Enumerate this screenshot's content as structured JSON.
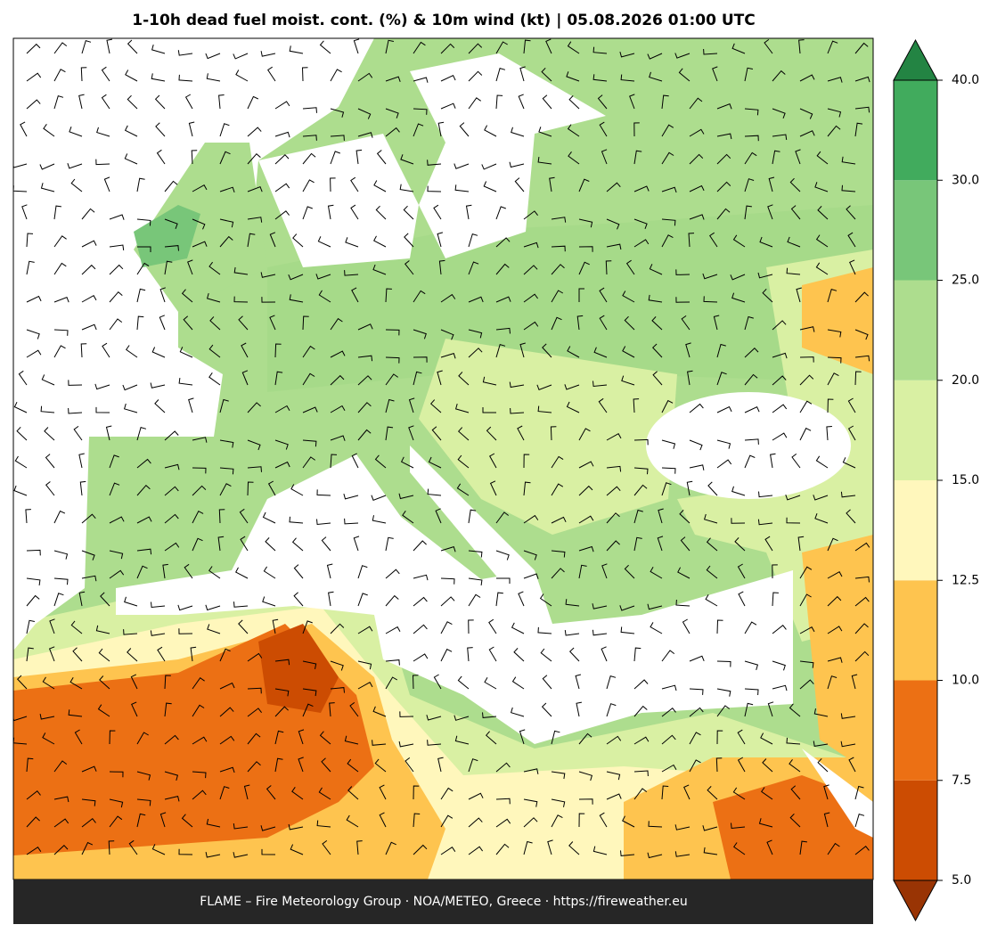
{
  "title": "1-10h dead fuel moist. cont. (%) & 10m wind (kt)  |  05.08.2026 01:00 UTC",
  "footer": "FLAME – Fire Meteorology Group · NOA/METEO, Greece · https://fireweather.eu",
  "colorbar": {
    "levels": [
      {
        "value": 5,
        "label": "5.0"
      },
      7.5,
      {
        "value": 10,
        "label": "10.0"
      },
      12.5,
      {
        "value": 15,
        "label": "15.0"
      },
      {
        "value": 20,
        "label": "20.0"
      },
      {
        "value": 25,
        "label": "25.0"
      },
      {
        "value": 30,
        "label": "30.0"
      },
      {
        "value": 40,
        "label": "40.0"
      }
    ],
    "colors": [
      "#cc4c02",
      "#ec7014",
      "#fec44f",
      "#fff7bc",
      "#d9f0a3",
      "#addd8e",
      "#78c679",
      "#41ab5d"
    ],
    "under_color": "#993404",
    "over_color": "#238443"
  }
}
